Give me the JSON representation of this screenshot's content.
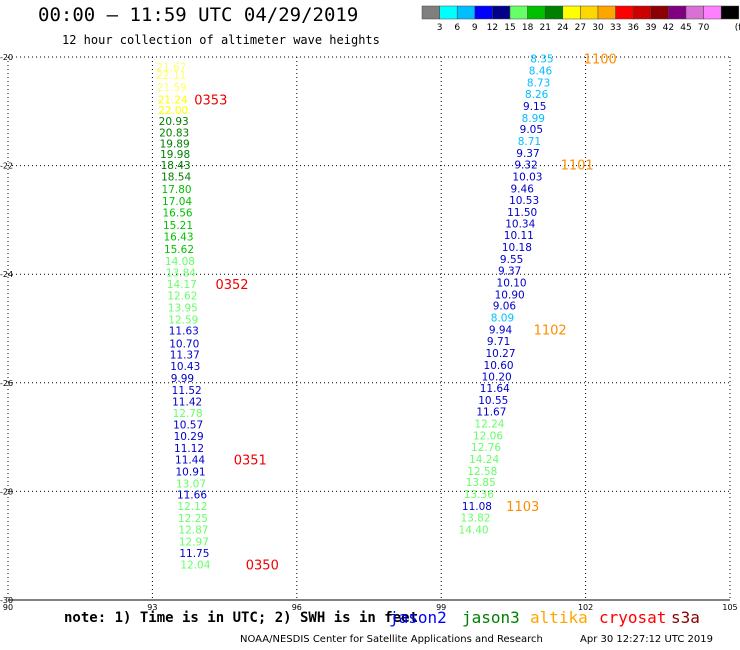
{
  "header": {
    "title": "00:00 – 11:59 UTC 04/29/2019",
    "subtitle": "12 hour collection of altimeter wave heights"
  },
  "legend": {
    "unit": "(ft)",
    "colors": [
      "#7f7f7f",
      "#00ffff",
      "#00bfff",
      "#0000ff",
      "#00008b",
      "#66ff66",
      "#00c000",
      "#008000",
      "#ffff00",
      "#ffd700",
      "#ffa500",
      "#ff0000",
      "#cc0000",
      "#8b0000",
      "#800080",
      "#da70d6",
      "#ff80ff",
      "#000000"
    ],
    "labels": [
      "3",
      "6",
      "9",
      "12",
      "15",
      "18",
      "21",
      "24",
      "27",
      "30",
      "33",
      "36",
      "39",
      "42",
      "45",
      "70"
    ]
  },
  "chart_data": {
    "type": "scatter",
    "title": "00:00 – 11:59 UTC 04/29/2019",
    "subtitle": "12 hour collection of altimeter wave heights",
    "xlim": [
      90,
      105
    ],
    "ylim": [
      -30,
      -20
    ],
    "x_ticks": [
      "90",
      "93",
      "96",
      "99",
      "102",
      "105"
    ],
    "y_ticks": [
      "-20",
      "-22",
      "-24",
      "-26",
      "-28",
      "-30"
    ],
    "value_unit": "ft",
    "tracks": [
      {
        "name": "track-1",
        "points": [
          {
            "lon": 93.08,
            "lat": -20.18,
            "v": "21.67",
            "c": "#ffff66"
          },
          {
            "lon": 93.08,
            "lat": -20.33,
            "v": "22.11",
            "c": "#ffff66"
          },
          {
            "lon": 93.09,
            "lat": -20.55,
            "v": "21.59",
            "c": "#ffff66"
          },
          {
            "lon": 93.11,
            "lat": -20.78,
            "v": "21.24",
            "c": "#ffff00"
          },
          {
            "lon": 93.12,
            "lat": -20.98,
            "v": "22.00",
            "c": "#ffff00"
          },
          {
            "lon": 93.13,
            "lat": -21.18,
            "v": "20.93",
            "c": "#008000"
          },
          {
            "lon": 93.14,
            "lat": -21.39,
            "v": "20.83",
            "c": "#008000"
          },
          {
            "lon": 93.15,
            "lat": -21.59,
            "v": "19.89",
            "c": "#008000"
          },
          {
            "lon": 93.16,
            "lat": -21.79,
            "v": "19.98",
            "c": "#008000"
          },
          {
            "lon": 93.17,
            "lat": -21.99,
            "v": "18.43",
            "c": "#008000"
          },
          {
            "lon": 93.18,
            "lat": -22.2,
            "v": "18.54",
            "c": "#008000"
          },
          {
            "lon": 93.19,
            "lat": -22.43,
            "v": "17.80",
            "c": "#00c000"
          },
          {
            "lon": 93.2,
            "lat": -22.65,
            "v": "17.04",
            "c": "#00c000"
          },
          {
            "lon": 93.21,
            "lat": -22.86,
            "v": "16.56",
            "c": "#00c000"
          },
          {
            "lon": 93.22,
            "lat": -23.09,
            "v": "15.21",
            "c": "#00c000"
          },
          {
            "lon": 93.23,
            "lat": -23.31,
            "v": "16.43",
            "c": "#00c000"
          },
          {
            "lon": 93.24,
            "lat": -23.54,
            "v": "15.62",
            "c": "#00c000"
          },
          {
            "lon": 93.26,
            "lat": -23.76,
            "v": "14.08",
            "c": "#66ff66"
          },
          {
            "lon": 93.28,
            "lat": -23.97,
            "v": "13.84",
            "c": "#66ff66"
          },
          {
            "lon": 93.3,
            "lat": -24.18,
            "v": "14.17",
            "c": "#66ff66"
          },
          {
            "lon": 93.31,
            "lat": -24.39,
            "v": "12.62",
            "c": "#66ff66"
          },
          {
            "lon": 93.32,
            "lat": -24.61,
            "v": "13.95",
            "c": "#66ff66"
          },
          {
            "lon": 93.33,
            "lat": -24.83,
            "v": "12.59",
            "c": "#66ff66"
          },
          {
            "lon": 93.34,
            "lat": -25.04,
            "v": "11.63",
            "c": "#0000cd"
          },
          {
            "lon": 93.35,
            "lat": -25.28,
            "v": "10.70",
            "c": "#0000cd"
          },
          {
            "lon": 93.36,
            "lat": -25.48,
            "v": "11.37",
            "c": "#0000cd"
          },
          {
            "lon": 93.37,
            "lat": -25.69,
            "v": "10.43",
            "c": "#0000cd"
          },
          {
            "lon": 93.38,
            "lat": -25.91,
            "v": "9.99",
            "c": "#0000cd"
          },
          {
            "lon": 93.4,
            "lat": -26.13,
            "v": "11.52",
            "c": "#0000cd"
          },
          {
            "lon": 93.41,
            "lat": -26.34,
            "v": "11.42",
            "c": "#0000cd"
          },
          {
            "lon": 93.42,
            "lat": -26.56,
            "v": "12.78",
            "c": "#66ff66"
          },
          {
            "lon": 93.43,
            "lat": -26.77,
            "v": "10.57",
            "c": "#0000cd"
          },
          {
            "lon": 93.44,
            "lat": -26.98,
            "v": "10.29",
            "c": "#0000cd"
          },
          {
            "lon": 93.45,
            "lat": -27.2,
            "v": "11.12",
            "c": "#0000cd"
          },
          {
            "lon": 93.47,
            "lat": -27.41,
            "v": "11.44",
            "c": "#0000cd"
          },
          {
            "lon": 93.48,
            "lat": -27.63,
            "v": "10.91",
            "c": "#0000cd"
          },
          {
            "lon": 93.49,
            "lat": -27.85,
            "v": "13.07",
            "c": "#66ff66"
          },
          {
            "lon": 93.51,
            "lat": -28.06,
            "v": "11.66",
            "c": "#0000cd"
          },
          {
            "lon": 93.52,
            "lat": -28.27,
            "v": "12.12",
            "c": "#66ff66"
          },
          {
            "lon": 93.53,
            "lat": -28.49,
            "v": "12.25",
            "c": "#66ff66"
          },
          {
            "lon": 93.54,
            "lat": -28.7,
            "v": "12.87",
            "c": "#66ff66"
          },
          {
            "lon": 93.55,
            "lat": -28.92,
            "v": "12.97",
            "c": "#66ff66"
          },
          {
            "lon": 93.56,
            "lat": -29.13,
            "v": "11.75",
            "c": "#0000cd"
          },
          {
            "lon": 93.58,
            "lat": -29.35,
            "v": "12.04",
            "c": "#66ff66"
          }
        ]
      },
      {
        "name": "track-2",
        "points": [
          {
            "lon": 100.85,
            "lat": -20.03,
            "v": "8.35",
            "c": "#00bfff"
          },
          {
            "lon": 100.82,
            "lat": -20.25,
            "v": "8.46",
            "c": "#00bfff"
          },
          {
            "lon": 100.78,
            "lat": -20.47,
            "v": "8.73",
            "c": "#00bfff"
          },
          {
            "lon": 100.74,
            "lat": -20.68,
            "v": "8.26",
            "c": "#00bfff"
          },
          {
            "lon": 100.7,
            "lat": -20.9,
            "v": "9.15",
            "c": "#0000cd"
          },
          {
            "lon": 100.67,
            "lat": -21.12,
            "v": "8.99",
            "c": "#00bfff"
          },
          {
            "lon": 100.63,
            "lat": -21.33,
            "v": "9.05",
            "c": "#0000cd"
          },
          {
            "lon": 100.59,
            "lat": -21.55,
            "v": "8.71",
            "c": "#00bfff"
          },
          {
            "lon": 100.56,
            "lat": -21.77,
            "v": "9.37",
            "c": "#0000cd"
          },
          {
            "lon": 100.52,
            "lat": -21.98,
            "v": "9.32",
            "c": "#0000cd"
          },
          {
            "lon": 100.48,
            "lat": -22.2,
            "v": "10.03",
            "c": "#0000cd"
          },
          {
            "lon": 100.44,
            "lat": -22.42,
            "v": "9.46",
            "c": "#0000cd"
          },
          {
            "lon": 100.41,
            "lat": -22.63,
            "v": "10.53",
            "c": "#0000cd"
          },
          {
            "lon": 100.37,
            "lat": -22.85,
            "v": "11.50",
            "c": "#0000cd"
          },
          {
            "lon": 100.33,
            "lat": -23.07,
            "v": "10.34",
            "c": "#0000cd"
          },
          {
            "lon": 100.3,
            "lat": -23.28,
            "v": "10.11",
            "c": "#0000cd"
          },
          {
            "lon": 100.26,
            "lat": -23.5,
            "v": "10.18",
            "c": "#0000cd"
          },
          {
            "lon": 100.22,
            "lat": -23.72,
            "v": "9.55",
            "c": "#0000cd"
          },
          {
            "lon": 100.18,
            "lat": -23.93,
            "v": "9.37",
            "c": "#0000cd"
          },
          {
            "lon": 100.15,
            "lat": -24.15,
            "v": "10.10",
            "c": "#0000cd"
          },
          {
            "lon": 100.11,
            "lat": -24.37,
            "v": "10.90",
            "c": "#0000cd"
          },
          {
            "lon": 100.07,
            "lat": -24.58,
            "v": "9.06",
            "c": "#0000cd"
          },
          {
            "lon": 100.03,
            "lat": -24.8,
            "v": "8.09",
            "c": "#00bfff"
          },
          {
            "lon": 99.99,
            "lat": -25.02,
            "v": "9.94",
            "c": "#0000cd"
          },
          {
            "lon": 99.95,
            "lat": -25.23,
            "v": "9.71",
            "c": "#0000cd"
          },
          {
            "lon": 99.92,
            "lat": -25.45,
            "v": "10.27",
            "c": "#0000cd"
          },
          {
            "lon": 99.88,
            "lat": -25.67,
            "v": "10.60",
            "c": "#0000cd"
          },
          {
            "lon": 99.84,
            "lat": -25.88,
            "v": "10.20",
            "c": "#0000cd"
          },
          {
            "lon": 99.8,
            "lat": -26.1,
            "v": "11.64",
            "c": "#0000cd"
          },
          {
            "lon": 99.77,
            "lat": -26.32,
            "v": "10.55",
            "c": "#0000cd"
          },
          {
            "lon": 99.73,
            "lat": -26.53,
            "v": "11.67",
            "c": "#0000cd"
          },
          {
            "lon": 99.69,
            "lat": -26.75,
            "v": "12.24",
            "c": "#66ff66"
          },
          {
            "lon": 99.66,
            "lat": -26.97,
            "v": "12.06",
            "c": "#66ff66"
          },
          {
            "lon": 99.62,
            "lat": -27.18,
            "v": "12.76",
            "c": "#66ff66"
          },
          {
            "lon": 99.58,
            "lat": -27.4,
            "v": "14.24",
            "c": "#66ff66"
          },
          {
            "lon": 99.54,
            "lat": -27.62,
            "v": "12.58",
            "c": "#66ff66"
          },
          {
            "lon": 99.51,
            "lat": -27.83,
            "v": "13.85",
            "c": "#66ff66"
          },
          {
            "lon": 99.47,
            "lat": -28.05,
            "v": "13.36",
            "c": "#66ff66"
          },
          {
            "lon": 99.43,
            "lat": -28.27,
            "v": "11.08",
            "c": "#0000cd"
          },
          {
            "lon": 99.4,
            "lat": -28.48,
            "v": "13.82",
            "c": "#66ff66"
          },
          {
            "lon": 99.36,
            "lat": -28.7,
            "v": "14.40",
            "c": "#66ff66"
          }
        ]
      }
    ],
    "time_markers": [
      {
        "label": "0353",
        "lon": 93.87,
        "lat": -20.78,
        "c": "#ee0000"
      },
      {
        "label": "0352",
        "lon": 94.31,
        "lat": -24.18,
        "c": "#ee0000"
      },
      {
        "label": "0351",
        "lon": 94.69,
        "lat": -27.41,
        "c": "#ee0000"
      },
      {
        "label": "0350",
        "lon": 94.94,
        "lat": -29.35,
        "c": "#ee0000"
      },
      {
        "label": "1100",
        "lon": 101.96,
        "lat": -20.03,
        "c": "#ff8c00"
      },
      {
        "label": "1101",
        "lon": 101.48,
        "lat": -21.98,
        "c": "#ff8c00"
      },
      {
        "label": "1102",
        "lon": 100.92,
        "lat": -25.02,
        "c": "#ff8c00"
      },
      {
        "label": "1103",
        "lon": 100.35,
        "lat": -28.27,
        "c": "#ff8c00"
      }
    ]
  },
  "footer": {
    "note": "note: 1) Time is in UTC; 2) SWH is in feet",
    "missions": [
      {
        "name": "jason2",
        "color": "#0000ff"
      },
      {
        "name": "jason3",
        "color": "#008000"
      },
      {
        "name": "altika",
        "color": "#ffa500"
      },
      {
        "name": "cryosat",
        "color": "#ff0000"
      },
      {
        "name": "s3a",
        "color": "#8b0000"
      }
    ],
    "credit": "NOAA/NESDIS Center for Satellite Applications and Research",
    "timestamp": "Apr 30 12:27:12 UTC 2019"
  }
}
